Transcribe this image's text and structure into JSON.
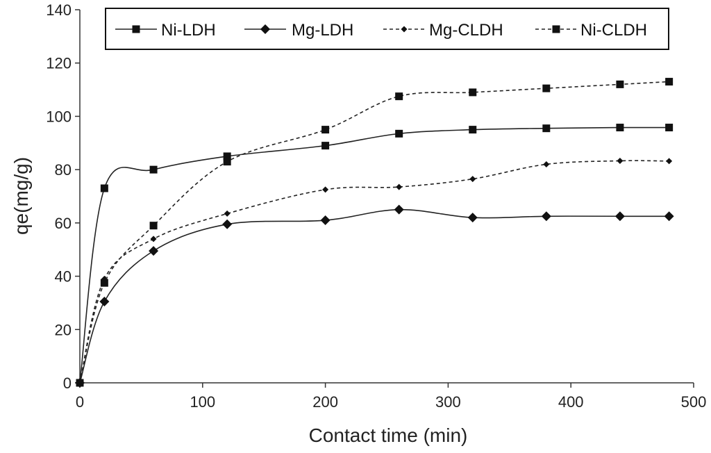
{
  "chart_data": {
    "type": "line",
    "title": "",
    "xlabel": "Contact time (min)",
    "ylabel": "qe(mg/g)",
    "xlim": [
      0,
      500
    ],
    "ylim": [
      0,
      140
    ],
    "xticks": [
      "0",
      "100",
      "200",
      "300",
      "400",
      "500"
    ],
    "yticks": [
      "0",
      "20",
      "40",
      "60",
      "80",
      "100",
      "120",
      "140"
    ],
    "grid": false,
    "legend_position": "top",
    "x": [
      0,
      20,
      60,
      120,
      200,
      260,
      320,
      380,
      440,
      480
    ],
    "series": [
      {
        "name": "Ni-LDH",
        "marker": "square",
        "line": "solid",
        "values": [
          0,
          73,
          80,
          85,
          89,
          93.5,
          95,
          95.5,
          95.8,
          95.8
        ]
      },
      {
        "name": "Mg-LDH",
        "marker": "diamond",
        "line": "solid",
        "values": [
          0,
          30.5,
          49.5,
          59.5,
          61,
          65,
          62,
          62.5,
          62.5,
          62.5
        ]
      },
      {
        "name": "Mg-CLDH",
        "marker": "small-diamond",
        "line": "dashed",
        "values": [
          0,
          39,
          54,
          63.5,
          72.5,
          73.5,
          76.5,
          82,
          83.3,
          83.2
        ]
      },
      {
        "name": "Ni-CLDH",
        "marker": "square",
        "line": "dashed",
        "values": [
          0,
          37.5,
          59,
          83,
          95,
          107.5,
          109,
          110.5,
          112,
          113
        ]
      }
    ]
  }
}
